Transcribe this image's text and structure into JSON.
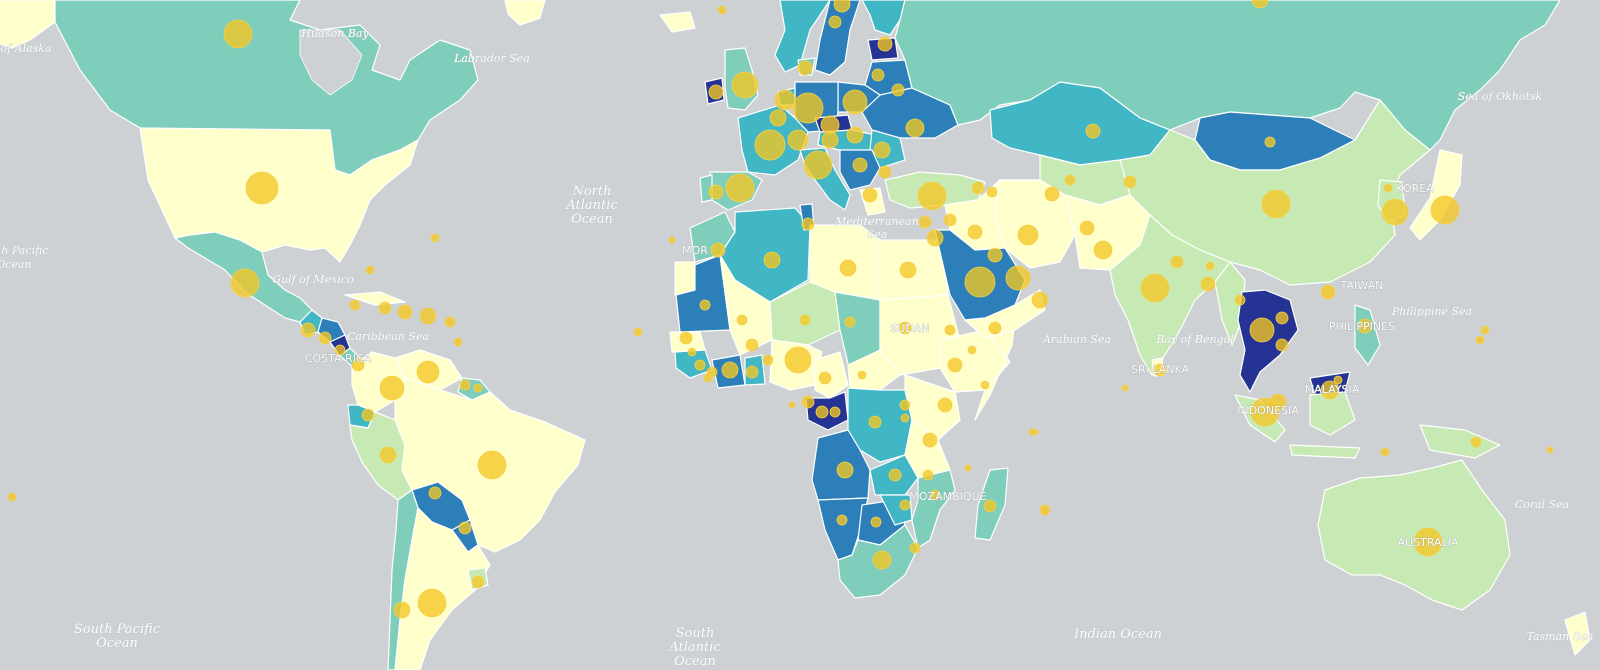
{
  "map": {
    "colors": {
      "water": "#cdd1d3",
      "choropleth": [
        "#ffffcc",
        "#c7e9b4",
        "#7fcdbb",
        "#41b6c4",
        "#2c7fb8",
        "#253494"
      ],
      "bubble": "#f3c623",
      "border": "#ffffff"
    },
    "water_labels": [
      {
        "id": "hudson-bay",
        "text": "Hudson Bay"
      },
      {
        "id": "labrador-sea",
        "text": "Labrador Sea"
      },
      {
        "id": "gulf-of-alaska",
        "text": "of Alaska"
      },
      {
        "id": "gulf-of-mexico",
        "text": "Gulf of Mexico"
      },
      {
        "id": "caribbean-sea",
        "text": "Caribbean Sea"
      },
      {
        "id": "north-pacific-1",
        "text": "h Pacific"
      },
      {
        "id": "north-pacific-2",
        "text": "Ocean"
      },
      {
        "id": "north-atlantic-1",
        "text": "North"
      },
      {
        "id": "north-atlantic-2",
        "text": "Atlantic"
      },
      {
        "id": "north-atlantic-3",
        "text": "Ocean"
      },
      {
        "id": "mediterranean-1",
        "text": "Mediterranean"
      },
      {
        "id": "mediterranean-2",
        "text": "Sea"
      },
      {
        "id": "arabian-sea",
        "text": "Arabian Sea"
      },
      {
        "id": "bay-of-bengal",
        "text": "Bay of Bengal"
      },
      {
        "id": "philippine-sea",
        "text": "Philippine Sea"
      },
      {
        "id": "sea-of-okhotsk",
        "text": "Sea of Okhotsk"
      },
      {
        "id": "south-pacific-1",
        "text": "South Pacific"
      },
      {
        "id": "south-pacific-2",
        "text": "Ocean"
      },
      {
        "id": "south-atlantic-1",
        "text": "South"
      },
      {
        "id": "south-atlantic-2",
        "text": "Atlantic"
      },
      {
        "id": "south-atlantic-3",
        "text": "Ocean"
      },
      {
        "id": "indian-ocean",
        "text": "Indian Ocean"
      },
      {
        "id": "coral-sea",
        "text": "Coral Sea"
      },
      {
        "id": "tasman-sea",
        "text": "Tasman Sea"
      }
    ],
    "country_labels": [
      {
        "id": "korea",
        "text": "KOREA"
      },
      {
        "id": "taiwan",
        "text": "TAIWAN"
      },
      {
        "id": "philippines",
        "text": "PHILIPPINES"
      },
      {
        "id": "sri-lanka",
        "text": "SRI LANKA"
      },
      {
        "id": "malaysia",
        "text": "MALAYSIA"
      },
      {
        "id": "indonesia",
        "text": "INDONESIA"
      },
      {
        "id": "mozambique",
        "text": "MOZAMBIQUE"
      },
      {
        "id": "morocco",
        "text": "MOR"
      },
      {
        "id": "costa-rica",
        "text": "COSTA RICA"
      },
      {
        "id": "sudan",
        "text": "SUDAN"
      },
      {
        "id": "australia",
        "text": "AUSTRALIA"
      }
    ]
  }
}
